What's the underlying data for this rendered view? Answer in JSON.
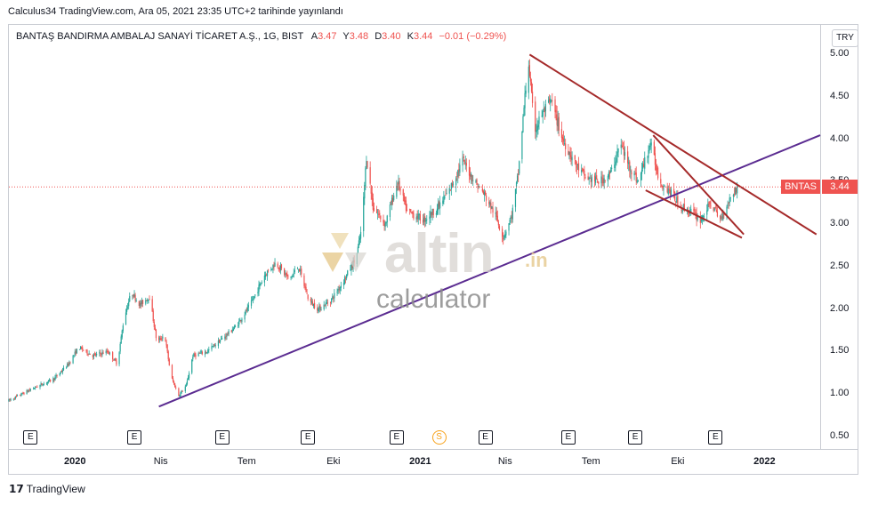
{
  "header": {
    "publish_line": "Calculus34 TradingView.com, Ara 05, 2021 23:35 UTC+2 tarihinde yayınlandı"
  },
  "legend": {
    "symbol_line": "BANTAŞ BANDIRMA AMBALAJ SANAYİ TİCARET A.Ş., 1G, BIST",
    "open_label": "A",
    "open_value": "3.47",
    "high_label": "Y",
    "high_value": "3.48",
    "low_label": "D",
    "low_value": "3.40",
    "close_label": "K",
    "close_value": "3.44",
    "change": "−0.01 (−0.29%)"
  },
  "currency_button": "TRY",
  "price_tag": {
    "symbol": "BNTAS",
    "price": "3.44"
  },
  "watermark": {
    "brand": "altin",
    "suffix": ".in",
    "sub": "calculator"
  },
  "footer": {
    "brand": "TradingView",
    "icon": "tradingview-logo-icon"
  },
  "events": [
    {
      "type": "earnings",
      "label": "E",
      "date": "2019-11-15"
    },
    {
      "type": "earnings",
      "label": "E",
      "date": "2020-03-04"
    },
    {
      "type": "earnings",
      "label": "E",
      "date": "2020-06-05"
    },
    {
      "type": "earnings",
      "label": "E",
      "date": "2020-09-04"
    },
    {
      "type": "earnings",
      "label": "E",
      "date": "2020-12-07"
    },
    {
      "type": "split",
      "label": "S",
      "date": "2021-01-21"
    },
    {
      "type": "earnings",
      "label": "E",
      "date": "2021-03-11"
    },
    {
      "type": "earnings",
      "label": "E",
      "date": "2021-06-07"
    },
    {
      "type": "earnings",
      "label": "E",
      "date": "2021-08-17"
    },
    {
      "type": "earnings",
      "label": "E",
      "date": "2021-11-10"
    }
  ],
  "colors": {
    "up": "#26a69a",
    "down": "#ef5350",
    "trend_support": "#5b2c91",
    "wedge": "#a52a2a",
    "last_price": "#ef5350"
  },
  "chart_data": {
    "type": "candlestick",
    "title": "BANTAŞ BANDIRMA AMBALAJ SANAYİ TİCARET A.Ş., 1G, BIST",
    "x_ticks": [
      {
        "date": "2020-01-01",
        "label": "2020",
        "bold": true
      },
      {
        "date": "2020-04-01",
        "label": "Nis",
        "bold": false
      },
      {
        "date": "2020-07-01",
        "label": "Tem",
        "bold": false
      },
      {
        "date": "2020-10-01",
        "label": "Eki",
        "bold": false
      },
      {
        "date": "2021-01-01",
        "label": "2021",
        "bold": true
      },
      {
        "date": "2021-04-01",
        "label": "Nis",
        "bold": false
      },
      {
        "date": "2021-07-01",
        "label": "Tem",
        "bold": false
      },
      {
        "date": "2021-10-01",
        "label": "Eki",
        "bold": false
      },
      {
        "date": "2022-01-01",
        "label": "2022",
        "bold": true
      }
    ],
    "y_ticks": [
      "5.00",
      "4.50",
      "4.00",
      "3.50",
      "3.00",
      "2.50",
      "2.00",
      "1.50",
      "1.00",
      "0.50"
    ],
    "ylim": [
      0.35,
      5.35
    ],
    "xlim": [
      "2019-10-23",
      "2022-03-01"
    ],
    "last_price": 3.44,
    "price_path": [
      [
        "2019-10-23",
        0.92
      ],
      [
        "2019-11-15",
        1.05
      ],
      [
        "2019-12-10",
        1.18
      ],
      [
        "2019-12-25",
        1.35
      ],
      [
        "2020-01-05",
        1.55
      ],
      [
        "2020-01-20",
        1.45
      ],
      [
        "2020-02-05",
        1.5
      ],
      [
        "2020-02-15",
        1.35
      ],
      [
        "2020-02-22",
        1.9
      ],
      [
        "2020-03-01",
        2.2
      ],
      [
        "2020-03-10",
        2.05
      ],
      [
        "2020-03-20",
        2.15
      ],
      [
        "2020-03-28",
        1.6
      ],
      [
        "2020-04-05",
        1.7
      ],
      [
        "2020-04-12",
        1.2
      ],
      [
        "2020-04-20",
        0.98
      ],
      [
        "2020-04-28",
        1.1
      ],
      [
        "2020-05-05",
        1.45
      ],
      [
        "2020-05-20",
        1.5
      ],
      [
        "2020-06-05",
        1.65
      ],
      [
        "2020-06-20",
        1.8
      ],
      [
        "2020-07-05",
        2.05
      ],
      [
        "2020-07-20",
        2.4
      ],
      [
        "2020-08-01",
        2.55
      ],
      [
        "2020-08-15",
        2.35
      ],
      [
        "2020-08-25",
        2.5
      ],
      [
        "2020-09-05",
        2.1
      ],
      [
        "2020-09-15",
        2.0
      ],
      [
        "2020-09-28",
        2.1
      ],
      [
        "2020-10-10",
        2.3
      ],
      [
        "2020-10-25",
        2.6
      ],
      [
        "2020-10-31",
        2.95
      ],
      [
        "2020-11-05",
        3.8
      ],
      [
        "2020-11-12",
        3.2
      ],
      [
        "2020-11-25",
        3.0
      ],
      [
        "2020-12-08",
        3.5
      ],
      [
        "2020-12-18",
        3.15
      ],
      [
        "2021-01-05",
        3.05
      ],
      [
        "2021-01-20",
        3.2
      ],
      [
        "2021-02-01",
        3.4
      ],
      [
        "2021-02-15",
        3.75
      ],
      [
        "2021-02-28",
        3.5
      ],
      [
        "2021-03-10",
        3.35
      ],
      [
        "2021-03-22",
        3.1
      ],
      [
        "2021-03-30",
        2.85
      ],
      [
        "2021-04-08",
        3.1
      ],
      [
        "2021-04-15",
        3.6
      ],
      [
        "2021-04-22",
        4.5
      ],
      [
        "2021-04-26",
        4.9
      ],
      [
        "2021-05-02",
        4.1
      ],
      [
        "2021-05-10",
        4.3
      ],
      [
        "2021-05-20",
        4.45
      ],
      [
        "2021-06-01",
        4.0
      ],
      [
        "2021-06-15",
        3.7
      ],
      [
        "2021-06-25",
        3.55
      ],
      [
        "2021-07-10",
        3.5
      ],
      [
        "2021-07-22",
        3.6
      ],
      [
        "2021-08-01",
        3.95
      ],
      [
        "2021-08-10",
        3.7
      ],
      [
        "2021-08-20",
        3.5
      ],
      [
        "2021-09-02",
        3.95
      ],
      [
        "2021-09-12",
        3.5
      ],
      [
        "2021-09-22",
        3.4
      ],
      [
        "2021-10-05",
        3.2
      ],
      [
        "2021-10-15",
        3.15
      ],
      [
        "2021-10-25",
        3.05
      ],
      [
        "2021-11-05",
        3.25
      ],
      [
        "2021-11-15",
        3.05
      ],
      [
        "2021-11-25",
        3.3
      ],
      [
        "2021-12-03",
        3.44
      ]
    ],
    "trend_lines": [
      {
        "name": "support",
        "color": "#5b2c91",
        "from": [
          "2020-03-30",
          0.85
        ],
        "to": [
          "2022-03-01",
          4.05
        ]
      },
      {
        "name": "upper-resistance",
        "color": "#a52a2a",
        "from": [
          "2021-04-27",
          5.0
        ],
        "to": [
          "2022-02-25",
          2.88
        ]
      },
      {
        "name": "wedge-upper",
        "color": "#a52a2a",
        "from": [
          "2021-09-05",
          4.05
        ],
        "to": [
          "2021-12-10",
          2.88
        ]
      },
      {
        "name": "wedge-lower",
        "color": "#a52a2a",
        "from": [
          "2021-08-28",
          3.4
        ],
        "to": [
          "2021-12-08",
          2.84
        ]
      }
    ]
  }
}
